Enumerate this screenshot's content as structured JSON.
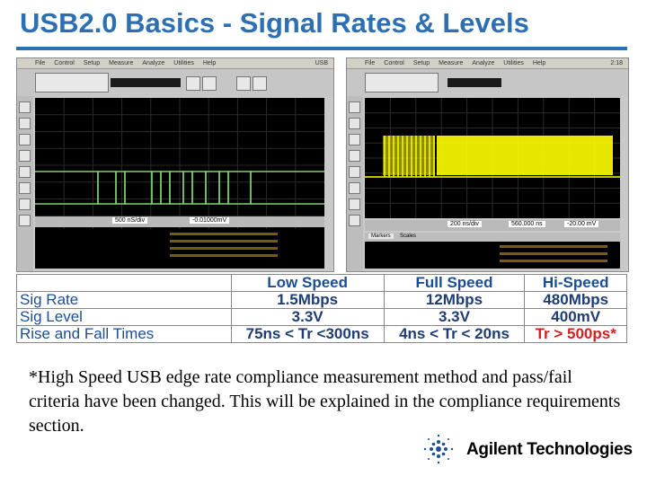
{
  "title": "USB2.0 Basics - Signal Rates & Levels",
  "scope_left": {
    "menu": [
      "File",
      "Control",
      "Setup",
      "Measure",
      "Analyze",
      "Utilities",
      "Help"
    ],
    "menu_right": "USB",
    "timebase": "500 nS/div",
    "trigger_level": "-0.01000mV"
  },
  "scope_right": {
    "menu": [
      "File",
      "Control",
      "Setup",
      "Measure",
      "Analyze",
      "Utilities",
      "Help"
    ],
    "menu_right": "2:18",
    "timebase": "200 ns/div",
    "delay": "560.000 ns",
    "trigger_level": "-20.00 mV",
    "tabs": [
      "Markers",
      "Scales"
    ]
  },
  "table": {
    "columns": [
      "",
      "Low Speed",
      "Full Speed",
      "Hi-Speed"
    ],
    "rows": [
      {
        "label": "Sig Rate",
        "values": [
          "1.5Mbps",
          "12Mbps",
          "480Mbps"
        ]
      },
      {
        "label": "Sig Level",
        "values": [
          "3.3V",
          "3.3V",
          "400mV"
        ]
      },
      {
        "label": "Rise and Fall Times",
        "values": [
          "75ns < Tr <300ns",
          "4ns < Tr < 20ns",
          "Tr > 500ps*"
        ]
      }
    ]
  },
  "footnote": "*High Speed USB edge rate compliance measurement method and pass/fail criteria have been changed. This will be explained in the compliance requirements section.",
  "brand": "Agilent Technologies",
  "colors": {
    "title_blue": "#2d6fb3",
    "low_speed_trace": "#7fd36b",
    "high_speed_trace": "#ffff00",
    "alert_red": "#d42020"
  }
}
